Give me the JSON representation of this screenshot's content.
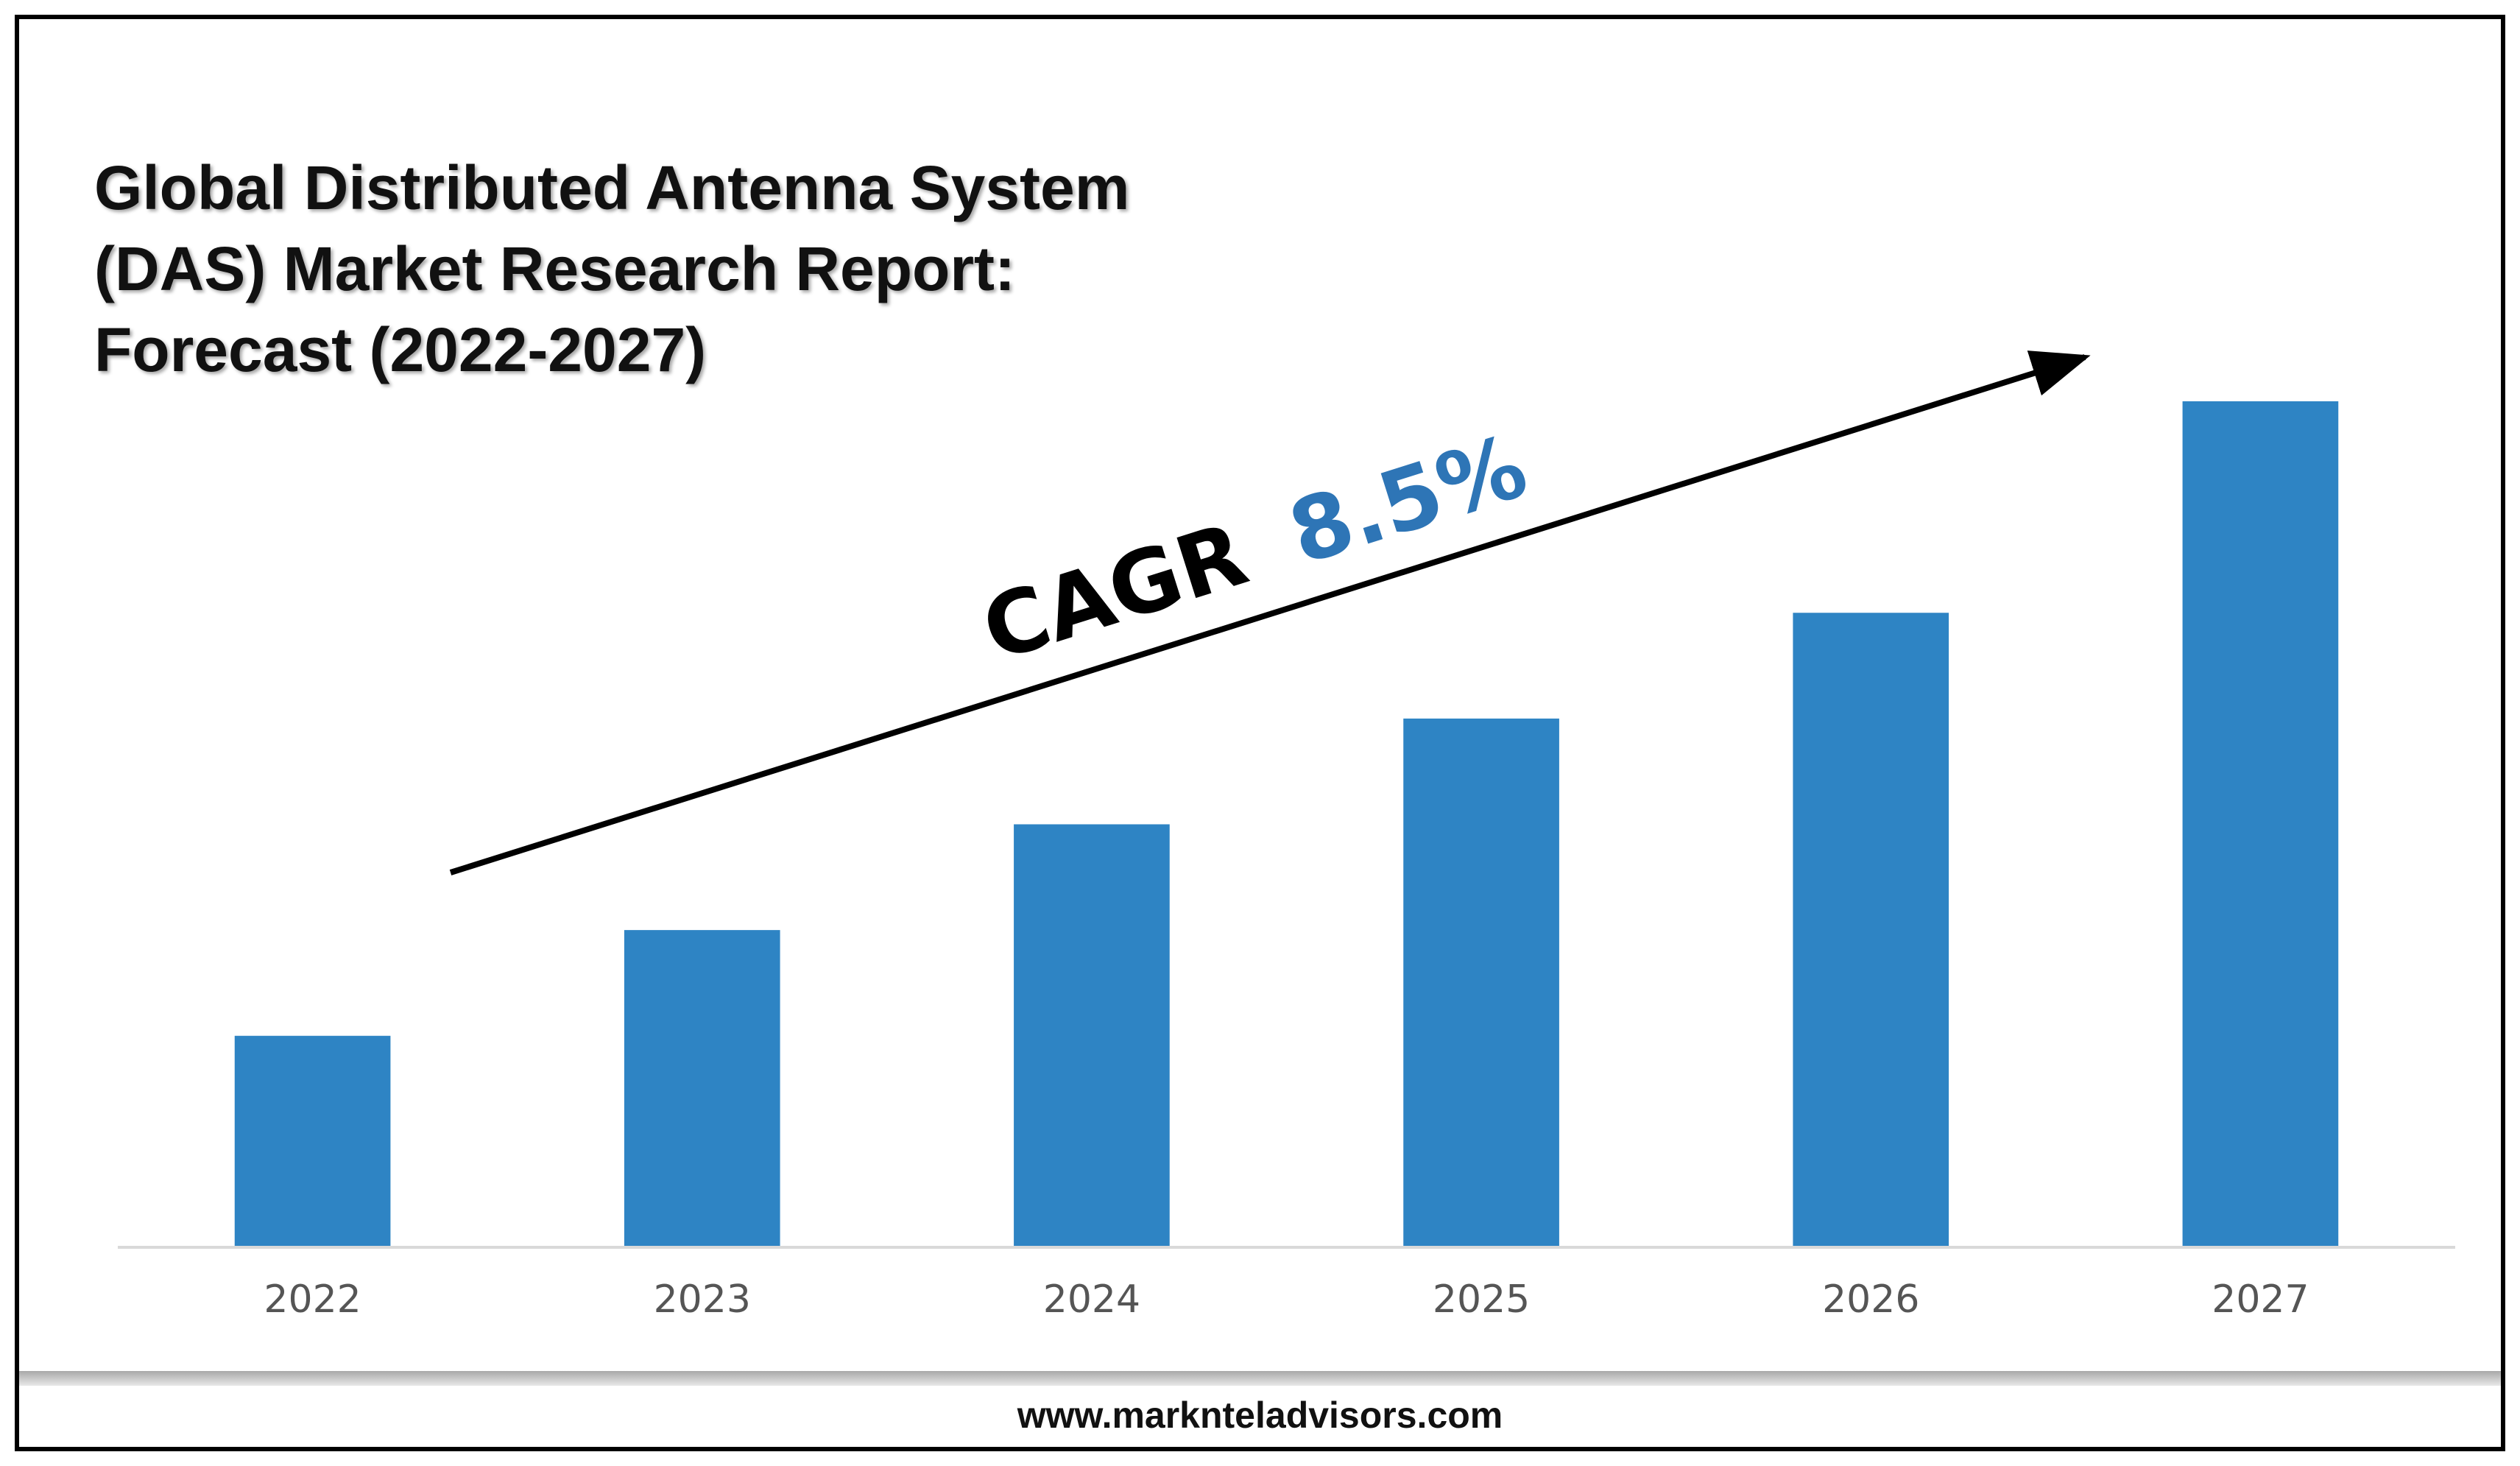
{
  "title_lines": [
    "Global Distributed Antenna System",
    "(DAS) Market Research Report:",
    "Forecast (2022-2027)"
  ],
  "annotation": {
    "cagr_label": "CAGR",
    "cagr_value": "8.5%",
    "cagr_label_color": "#000000",
    "cagr_value_color": "#2e75b6"
  },
  "footer": {
    "url": "www.marknteladvisors.com"
  },
  "colors": {
    "bar": "#2e84c4",
    "axis": "#d9d9d9",
    "tick_text": "#555555"
  },
  "chart_data": {
    "type": "bar",
    "title": "Global Distributed Antenna System (DAS) Market Research Report: Forecast (2022-2027)",
    "categories": [
      "2022",
      "2023",
      "2024",
      "2025",
      "2026",
      "2027"
    ],
    "values": [
      1.0,
      1.5,
      2.0,
      2.5,
      3.0,
      4.0
    ],
    "ylim": [
      0,
      4.0
    ],
    "xlabel": "",
    "ylabel": "",
    "grid": false,
    "legend": "none"
  }
}
